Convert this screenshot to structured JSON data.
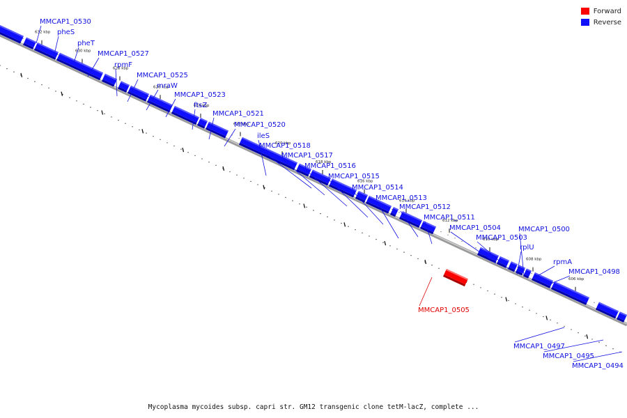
{
  "legend": {
    "forward": {
      "label": "Forward",
      "color": "#ff0000"
    },
    "reverse": {
      "label": "Reverse",
      "color": "#1010ff"
    }
  },
  "caption": "Mycoplasma mycoides subsp. capri str. GM12 transgenic clone tetM-lacZ, complete ...",
  "ruler": [
    "632 kbp",
    "630 kbp",
    "628 kbp",
    "626 kbp",
    "624 kbp",
    "622 kbp",
    "620 kbp",
    "618 kbp",
    "616 kbp",
    "614 kbp",
    "612 kbp",
    "610 kbp",
    "608 kbp",
    "606 kbp"
  ],
  "genes": [
    {
      "name": "MMCAP1_0530",
      "strand": "reverse"
    },
    {
      "name": "pheS",
      "strand": "reverse"
    },
    {
      "name": "pheT",
      "strand": "reverse"
    },
    {
      "name": "MMCAP1_0527",
      "strand": "reverse"
    },
    {
      "name": "rpmF",
      "strand": "reverse"
    },
    {
      "name": "MMCAP1_0525",
      "strand": "reverse"
    },
    {
      "name": "mraW",
      "strand": "reverse"
    },
    {
      "name": "MMCAP1_0523",
      "strand": "reverse"
    },
    {
      "name": "ftsZ",
      "strand": "reverse"
    },
    {
      "name": "MMCAP1_0521",
      "strand": "reverse"
    },
    {
      "name": "MMCAP1_0520",
      "strand": "reverse"
    },
    {
      "name": "ileS",
      "strand": "reverse"
    },
    {
      "name": "MMCAP1_0518",
      "strand": "reverse"
    },
    {
      "name": "MMCAP1_0517",
      "strand": "reverse"
    },
    {
      "name": "MMCAP1_0516",
      "strand": "reverse"
    },
    {
      "name": "MMCAP1_0515",
      "strand": "reverse"
    },
    {
      "name": "MMCAP1_0514",
      "strand": "reverse"
    },
    {
      "name": "MMCAP1_0513",
      "strand": "reverse"
    },
    {
      "name": "MMCAP1_0512",
      "strand": "reverse"
    },
    {
      "name": "MMCAP1_0511",
      "strand": "reverse"
    },
    {
      "name": "MMCAP1_0504",
      "strand": "reverse"
    },
    {
      "name": "MMCAP1_0503",
      "strand": "reverse"
    },
    {
      "name": "rplU",
      "strand": "reverse"
    },
    {
      "name": "MMCAP1_0500",
      "strand": "reverse"
    },
    {
      "name": "rpmA",
      "strand": "reverse"
    },
    {
      "name": "MMCAP1_0498",
      "strand": "reverse"
    },
    {
      "name": "MMCAP1_0505",
      "strand": "forward"
    },
    {
      "name": "MMCAP1_0497",
      "strand": "reverse"
    },
    {
      "name": "MMCAP1_0495",
      "strand": "reverse"
    },
    {
      "name": "MMCAP1_0494",
      "strand": "reverse"
    }
  ]
}
